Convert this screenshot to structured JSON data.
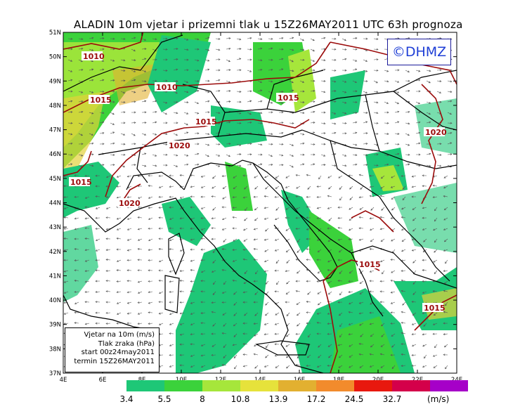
{
  "title": "ALADIN 10m vjetar i prizemni tlak u 15Z26MAY2011 UTC 63h prognoza",
  "logo": "©DHMZ",
  "info_box": {
    "line1": "Vjetar na 10m (m/s)",
    "line2": "Tlak zraka (hPa)",
    "line3": "start 00z24may2011",
    "line4": "termin 15Z26MAY2011"
  },
  "lat_labels": [
    "51N",
    "50N",
    "49N",
    "48N",
    "47N",
    "46N",
    "45N",
    "44N",
    "43N",
    "42N",
    "41N",
    "40N",
    "39N",
    "38N",
    "37N"
  ],
  "lon_labels": [
    "4E",
    "6E",
    "8E",
    "10E",
    "12E",
    "14E",
    "16E",
    "18E",
    "20E",
    "22E",
    "24E"
  ],
  "isobars": [
    {
      "label": "1010"
    },
    {
      "label": "1010"
    },
    {
      "label": "1015"
    },
    {
      "label": "1015"
    },
    {
      "label": "1015"
    },
    {
      "label": "1020"
    },
    {
      "label": "1015"
    },
    {
      "label": "1020"
    },
    {
      "label": "1020"
    },
    {
      "label": "1015"
    },
    {
      "label": "1015"
    }
  ],
  "colorbar": {
    "colors": [
      "#1ec777",
      "#3bd23b",
      "#a6e63b",
      "#e6e23b",
      "#e2b030",
      "#f28b2c",
      "#e8180e",
      "#d4004a",
      "#a600c8"
    ],
    "labels": [
      "3.4",
      "5.5",
      "8",
      "10.8",
      "13.9",
      "17.2",
      "24.5",
      "32.7"
    ],
    "unit": "(m/s)"
  }
}
